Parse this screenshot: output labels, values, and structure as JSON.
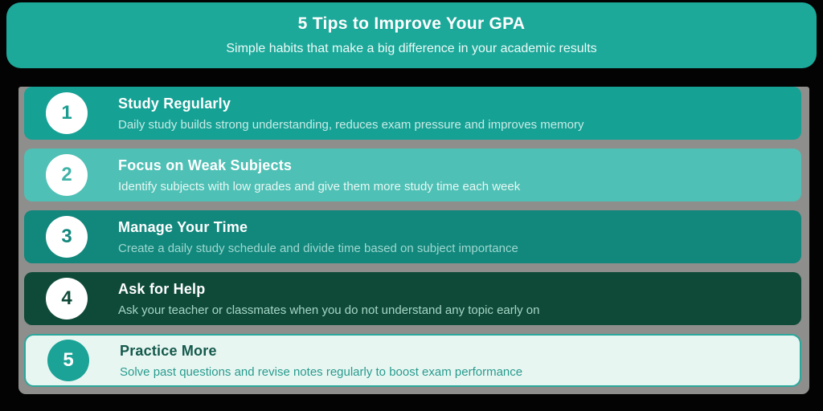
{
  "page": {
    "background": "#000000"
  },
  "header": {
    "title": "5 Tips to Improve Your GPA",
    "subtitle": "Simple habits that make a big difference in your academic results",
    "background": "#1CA99A",
    "title_color": "#FFFFFF",
    "subtitle_color": "#ECFAF7"
  },
  "panel": {
    "shadow_color": "#8E8E8C"
  },
  "tips": [
    {
      "number": "1",
      "title": "Study Regularly",
      "description": "Daily study builds strong understanding, reduces exam pressure and improves memory",
      "colors": {
        "background": "#16A195",
        "title": "#FFFFFF",
        "description": "#C7ECE6",
        "circle_background": "#FFFFFF",
        "number": "#1B9E91"
      }
    },
    {
      "number": "2",
      "title": "Focus on Weak Subjects",
      "description": "Identify subjects with low grades and give them more study time each week",
      "colors": {
        "background": "#4FC0B5",
        "title": "#FFFFFF",
        "description": "#E6F8F5",
        "circle_background": "#FFFFFF",
        "number": "#3FB3A7"
      }
    },
    {
      "number": "3",
      "title": "Manage Your Time",
      "description": "Create a daily study schedule and divide time based on subject importance",
      "colors": {
        "background": "#12877C",
        "title": "#FFFFFF",
        "description": "#9ED8D0",
        "circle_background": "#FFFFFF",
        "number": "#12877C"
      }
    },
    {
      "number": "4",
      "title": "Ask for Help",
      "description": "Ask your teacher or classmates when you do not understand any topic early on",
      "colors": {
        "background": "#0F4A39",
        "title": "#FFFFFF",
        "description": "#A6D6C5",
        "circle_background": "#FFFFFF",
        "number": "#0F4A39"
      }
    },
    {
      "number": "5",
      "title": "Practice More",
      "description": "Solve past questions and revise notes regularly to boost exam performance",
      "colors": {
        "background": "#E8F6F2",
        "border": "#2AA89B",
        "title": "#14594B",
        "description": "#279B8D",
        "circle_background": "#1AA396",
        "number": "#FFFFFF"
      }
    }
  ]
}
